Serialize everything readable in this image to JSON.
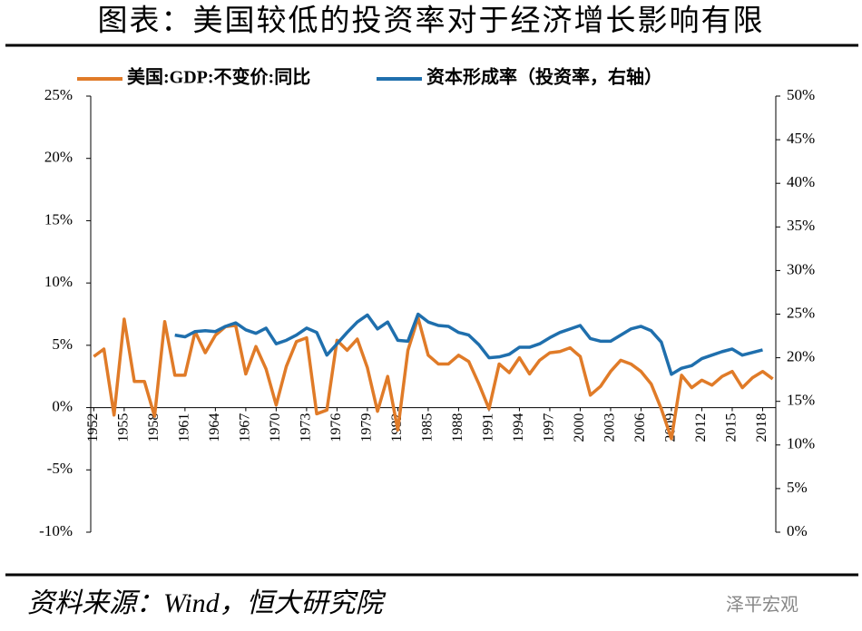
{
  "chart_data": {
    "type": "line",
    "title": "图表：美国较低的投资率对于经济增长影响有限",
    "x": [
      1952,
      1953,
      1954,
      1955,
      1956,
      1957,
      1958,
      1959,
      1960,
      1961,
      1962,
      1963,
      1964,
      1965,
      1966,
      1967,
      1968,
      1969,
      1970,
      1971,
      1972,
      1973,
      1974,
      1975,
      1976,
      1977,
      1978,
      1979,
      1980,
      1981,
      1982,
      1983,
      1984,
      1985,
      1986,
      1987,
      1988,
      1989,
      1990,
      1991,
      1992,
      1993,
      1994,
      1995,
      1996,
      1997,
      1998,
      1999,
      2000,
      2001,
      2002,
      2003,
      2004,
      2005,
      2006,
      2007,
      2008,
      2009,
      2010,
      2011,
      2012,
      2013,
      2014,
      2015,
      2016,
      2017,
      2018,
      2019
    ],
    "xlim": [
      1951.7,
      2019.3
    ],
    "xticks": [
      1952,
      1955,
      1958,
      1961,
      1964,
      1967,
      1970,
      1973,
      1976,
      1979,
      1982,
      1985,
      1988,
      1991,
      1994,
      1997,
      2000,
      2003,
      2006,
      2009,
      2012,
      2015,
      2018
    ],
    "series": [
      {
        "name": "美国:GDP:不变价:同比",
        "color": "#e07b28",
        "axis": "y",
        "values": [
          4.1,
          4.7,
          -0.6,
          7.1,
          2.1,
          2.1,
          -0.7,
          6.9,
          2.6,
          2.6,
          6.1,
          4.4,
          5.8,
          6.5,
          6.6,
          2.7,
          4.9,
          3.1,
          0.2,
          3.3,
          5.3,
          5.6,
          -0.5,
          -0.2,
          5.4,
          4.6,
          5.5,
          3.2,
          -0.3,
          2.5,
          -1.8,
          4.6,
          7.2,
          4.2,
          3.5,
          3.5,
          4.2,
          3.7,
          1.9,
          -0.1,
          3.5,
          2.8,
          4.0,
          2.7,
          3.8,
          4.4,
          4.5,
          4.8,
          4.1,
          1.0,
          1.7,
          2.9,
          3.8,
          3.5,
          2.9,
          1.9,
          -0.1,
          -2.5,
          2.6,
          1.6,
          2.2,
          1.8,
          2.5,
          2.9,
          1.6,
          2.4,
          2.9,
          2.3
        ]
      },
      {
        "name": "资本形成率（投资率，右轴）",
        "color": "#1f6fad",
        "axis": "y2",
        "values": [
          null,
          null,
          null,
          null,
          null,
          null,
          null,
          null,
          22.6,
          22.4,
          23.0,
          23.1,
          23.0,
          23.6,
          24.0,
          23.2,
          22.8,
          23.4,
          21.6,
          22.0,
          22.6,
          23.4,
          22.9,
          20.3,
          21.6,
          22.9,
          24.1,
          24.9,
          23.3,
          24.1,
          22.0,
          21.9,
          25.0,
          24.1,
          23.7,
          23.6,
          22.9,
          22.6,
          21.5,
          20.0,
          20.1,
          20.4,
          21.2,
          21.2,
          21.6,
          22.3,
          22.9,
          23.3,
          23.7,
          22.2,
          21.9,
          21.9,
          22.6,
          23.3,
          23.6,
          23.1,
          21.8,
          18.1,
          18.8,
          19.1,
          19.9,
          20.3,
          20.7,
          21.0,
          20.3,
          20.6,
          20.9,
          null
        ]
      }
    ],
    "ylim": [
      -10,
      25
    ],
    "yticks": [
      {
        "value": -10,
        "label": "-10%"
      },
      {
        "value": -5,
        "label": "-5%"
      },
      {
        "value": 0,
        "label": "0%"
      },
      {
        "value": 5,
        "label": "5%"
      },
      {
        "value": 10,
        "label": "10%"
      },
      {
        "value": 15,
        "label": "15%"
      },
      {
        "value": 20,
        "label": "20%"
      },
      {
        "value": 25,
        "label": "25%"
      }
    ],
    "y2lim": [
      0,
      50
    ],
    "y2ticks": [
      {
        "value": 0,
        "label": "0%"
      },
      {
        "value": 5,
        "label": "5%"
      },
      {
        "value": 10,
        "label": "10%"
      },
      {
        "value": 15,
        "label": "15%"
      },
      {
        "value": 20,
        "label": "20%"
      },
      {
        "value": 25,
        "label": "25%"
      },
      {
        "value": 30,
        "label": "30%"
      },
      {
        "value": 35,
        "label": "35%"
      },
      {
        "value": 40,
        "label": "40%"
      },
      {
        "value": 45,
        "label": "45%"
      },
      {
        "value": 50,
        "label": "50%"
      }
    ],
    "grid": false,
    "legend": "top",
    "source": "资料来源：Wind，恒大研究院",
    "watermark": "泽平宏观"
  }
}
